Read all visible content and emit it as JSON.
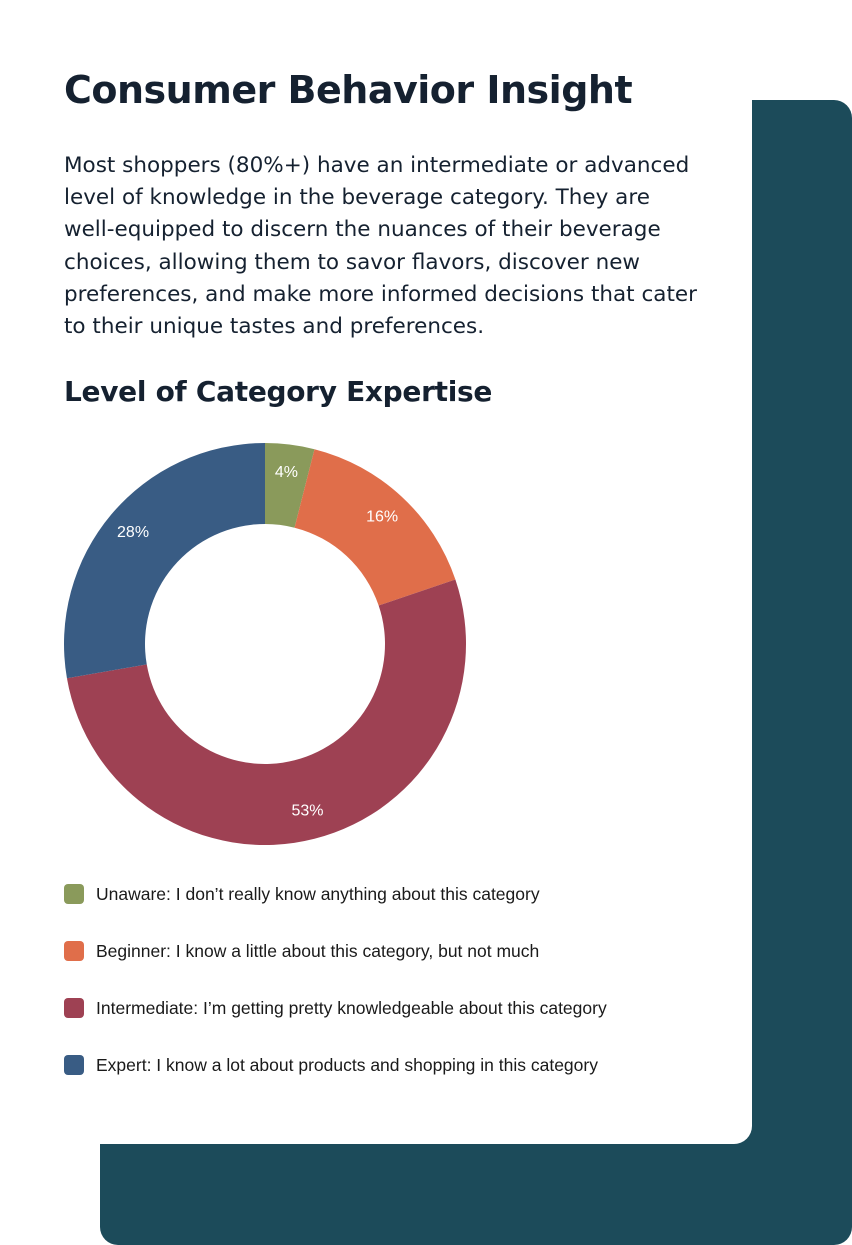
{
  "header": {
    "title": "Consumer Behavior Insight",
    "intro": "Most shoppers (80%+) have an intermediate or advanced level of knowledge in the beverage category. They are well-equipped to discern the nuances of their beverage choices, allowing them to savor flavors, discover new preferences, and make more informed decisions that cater to their unique tastes and preferences."
  },
  "section": {
    "title": "Level of Category Expertise"
  },
  "colors": {
    "background_panel": "#1c4b5a",
    "text": "#152130"
  },
  "chart_data": {
    "type": "pie",
    "variant": "donut",
    "title": "Level of Category Expertise",
    "legend_position": "bottom",
    "slices": [
      {
        "name": "Unaware: I don’t really know anything about this category",
        "value": 4,
        "label": "4%",
        "color": "#8a9a5b"
      },
      {
        "name": "Beginner: I know a little about this category, but not much",
        "value": 16,
        "label": "16%",
        "color": "#e06e4a"
      },
      {
        "name": "Intermediate: I’m getting pretty knowledgeable about this category",
        "value": 53,
        "label": "53%",
        "color": "#9e4153"
      },
      {
        "name": "Expert: I know a lot about products and shopping in this category",
        "value": 28,
        "label": "28%",
        "color": "#395c84"
      }
    ]
  }
}
